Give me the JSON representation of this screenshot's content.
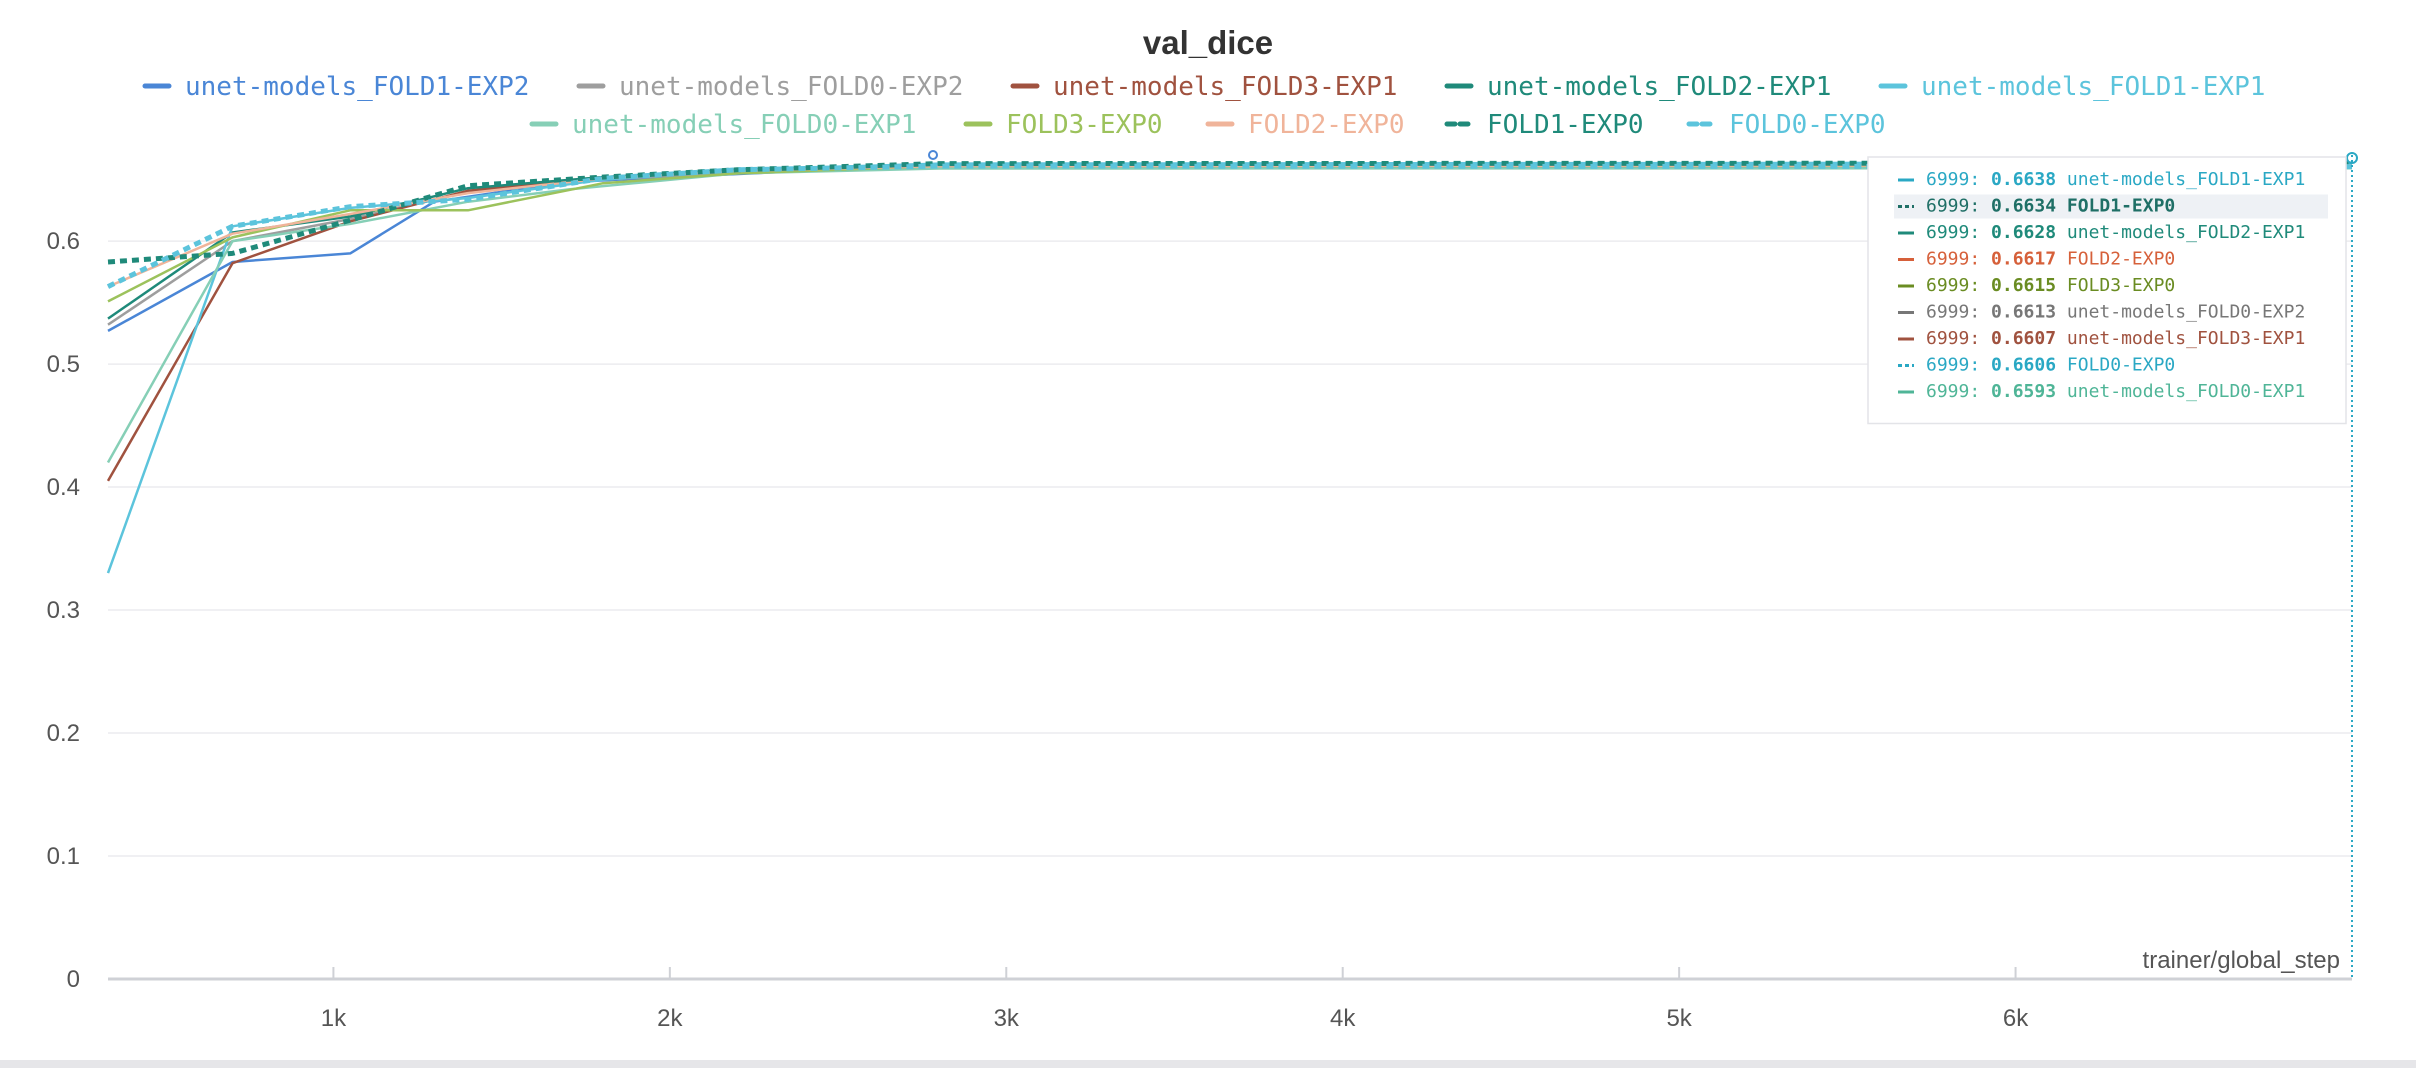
{
  "chart_data": {
    "type": "line",
    "title": "val_dice",
    "xlabel": "trainer/global_step",
    "ylabel": "",
    "xlim": [
      330,
      7000
    ],
    "ylim": [
      0,
      0.67
    ],
    "x_ticks": [
      1000,
      2000,
      3000,
      4000,
      5000,
      6000
    ],
    "x_tick_labels": [
      "1k",
      "2k",
      "3k",
      "4k",
      "5k",
      "6k"
    ],
    "y_ticks": [
      0,
      0.1,
      0.2,
      0.3,
      0.4,
      0.5,
      0.6
    ],
    "y_tick_labels": [
      "0",
      "0.1",
      "0.2",
      "0.3",
      "0.4",
      "0.5",
      "0.6"
    ],
    "grid": true,
    "legend_position": "top",
    "series": [
      {
        "name": "unet-models_FOLD1-EXP2",
        "color": "#4a86d6",
        "dash": false,
        "points": [
          [
            330,
            0.527
          ],
          [
            700,
            0.583
          ],
          [
            1050,
            0.59
          ],
          [
            1300,
            0.632
          ],
          [
            1700,
            0.648
          ],
          [
            2000,
            0.652
          ],
          [
            2800,
            0.662
          ],
          [
            7000,
            0.662
          ]
        ]
      },
      {
        "name": "unet-models_FOLD0-EXP2",
        "color": "#9e9e9e",
        "dash": false,
        "points": [
          [
            330,
            0.532
          ],
          [
            700,
            0.6
          ],
          [
            1050,
            0.618
          ],
          [
            1400,
            0.64
          ],
          [
            1800,
            0.65
          ],
          [
            2200,
            0.656
          ],
          [
            2800,
            0.661
          ],
          [
            7000,
            0.6613
          ]
        ]
      },
      {
        "name": "unet-models_FOLD3-EXP1",
        "color": "#a0523f",
        "dash": false,
        "points": [
          [
            330,
            0.405
          ],
          [
            700,
            0.582
          ],
          [
            1050,
            0.616
          ],
          [
            1400,
            0.641
          ],
          [
            1800,
            0.652
          ],
          [
            2200,
            0.657
          ],
          [
            2800,
            0.66
          ],
          [
            7000,
            0.6607
          ]
        ]
      },
      {
        "name": "unet-models_FOLD2-EXP1",
        "color": "#1f8a7a",
        "dash": false,
        "points": [
          [
            330,
            0.537
          ],
          [
            700,
            0.607
          ],
          [
            1050,
            0.62
          ],
          [
            1400,
            0.643
          ],
          [
            1800,
            0.652
          ],
          [
            2200,
            0.658
          ],
          [
            2800,
            0.662
          ],
          [
            7000,
            0.6628
          ]
        ]
      },
      {
        "name": "unet-models_FOLD1-EXP1",
        "color": "#5cc4dc",
        "dash": false,
        "points": [
          [
            330,
            0.33
          ],
          [
            700,
            0.612
          ],
          [
            1050,
            0.627
          ],
          [
            1400,
            0.635
          ],
          [
            1800,
            0.65
          ],
          [
            2200,
            0.658
          ],
          [
            2800,
            0.663
          ],
          [
            7000,
            0.6638
          ]
        ]
      },
      {
        "name": "unet-models_FOLD0-EXP1",
        "color": "#86cfb6",
        "dash": false,
        "points": [
          [
            330,
            0.42
          ],
          [
            700,
            0.6
          ],
          [
            1050,
            0.614
          ],
          [
            1400,
            0.632
          ],
          [
            1700,
            0.642
          ],
          [
            2200,
            0.655
          ],
          [
            2800,
            0.659
          ],
          [
            7000,
            0.6593
          ]
        ]
      },
      {
        "name": "FOLD3-EXP0",
        "color": "#9cc25c",
        "dash": false,
        "points": [
          [
            330,
            0.551
          ],
          [
            700,
            0.603
          ],
          [
            1050,
            0.625
          ],
          [
            1400,
            0.625
          ],
          [
            1800,
            0.647
          ],
          [
            2200,
            0.655
          ],
          [
            2800,
            0.661
          ],
          [
            7000,
            0.6615
          ]
        ]
      },
      {
        "name": "FOLD2-EXP0",
        "color": "#f0b49a",
        "dash": false,
        "points": [
          [
            330,
            0.563
          ],
          [
            700,
            0.606
          ],
          [
            1050,
            0.622
          ],
          [
            1400,
            0.639
          ],
          [
            1800,
            0.651
          ],
          [
            2200,
            0.657
          ],
          [
            2800,
            0.661
          ],
          [
            7000,
            0.6617
          ]
        ]
      },
      {
        "name": "FOLD1-EXP0",
        "color": "#1f8a7a",
        "dash": true,
        "points": [
          [
            330,
            0.583
          ],
          [
            700,
            0.59
          ],
          [
            1050,
            0.617
          ],
          [
            1400,
            0.645
          ],
          [
            1800,
            0.652
          ],
          [
            2200,
            0.658
          ],
          [
            2800,
            0.663
          ],
          [
            7000,
            0.6634
          ]
        ]
      },
      {
        "name": "FOLD0-EXP0",
        "color": "#5cc4dc",
        "dash": true,
        "points": [
          [
            330,
            0.563
          ],
          [
            700,
            0.612
          ],
          [
            1050,
            0.628
          ],
          [
            1400,
            0.634
          ],
          [
            1800,
            0.651
          ],
          [
            2200,
            0.658
          ],
          [
            2800,
            0.661
          ],
          [
            7000,
            0.6606
          ]
        ]
      }
    ],
    "tooltip": {
      "step": "6999",
      "highlighted": "FOLD1-EXP0",
      "rows": [
        {
          "name": "unet-models_FOLD1-EXP1",
          "value": "0.6638",
          "color": "#2aa8c4",
          "dash": false
        },
        {
          "name": "FOLD1-EXP0",
          "value": "0.6634",
          "color": "#1f6f66",
          "dash": true
        },
        {
          "name": "unet-models_FOLD2-EXP1",
          "value": "0.6628",
          "color": "#1f8a7a",
          "dash": false
        },
        {
          "name": "FOLD2-EXP0",
          "value": "0.6617",
          "color": "#d6603a",
          "dash": false
        },
        {
          "name": "FOLD3-EXP0",
          "value": "0.6615",
          "color": "#6a8c22",
          "dash": false
        },
        {
          "name": "unet-models_FOLD0-EXP2",
          "value": "0.6613",
          "color": "#777777",
          "dash": false
        },
        {
          "name": "unet-models_FOLD3-EXP1",
          "value": "0.6607",
          "color": "#a0523f",
          "dash": false
        },
        {
          "name": "FOLD0-EXP0",
          "value": "0.6606",
          "color": "#2aa8c4",
          "dash": true
        },
        {
          "name": "unet-models_FOLD0-EXP1",
          "value": "0.6593",
          "color": "#4fb597",
          "dash": false
        }
      ]
    }
  }
}
